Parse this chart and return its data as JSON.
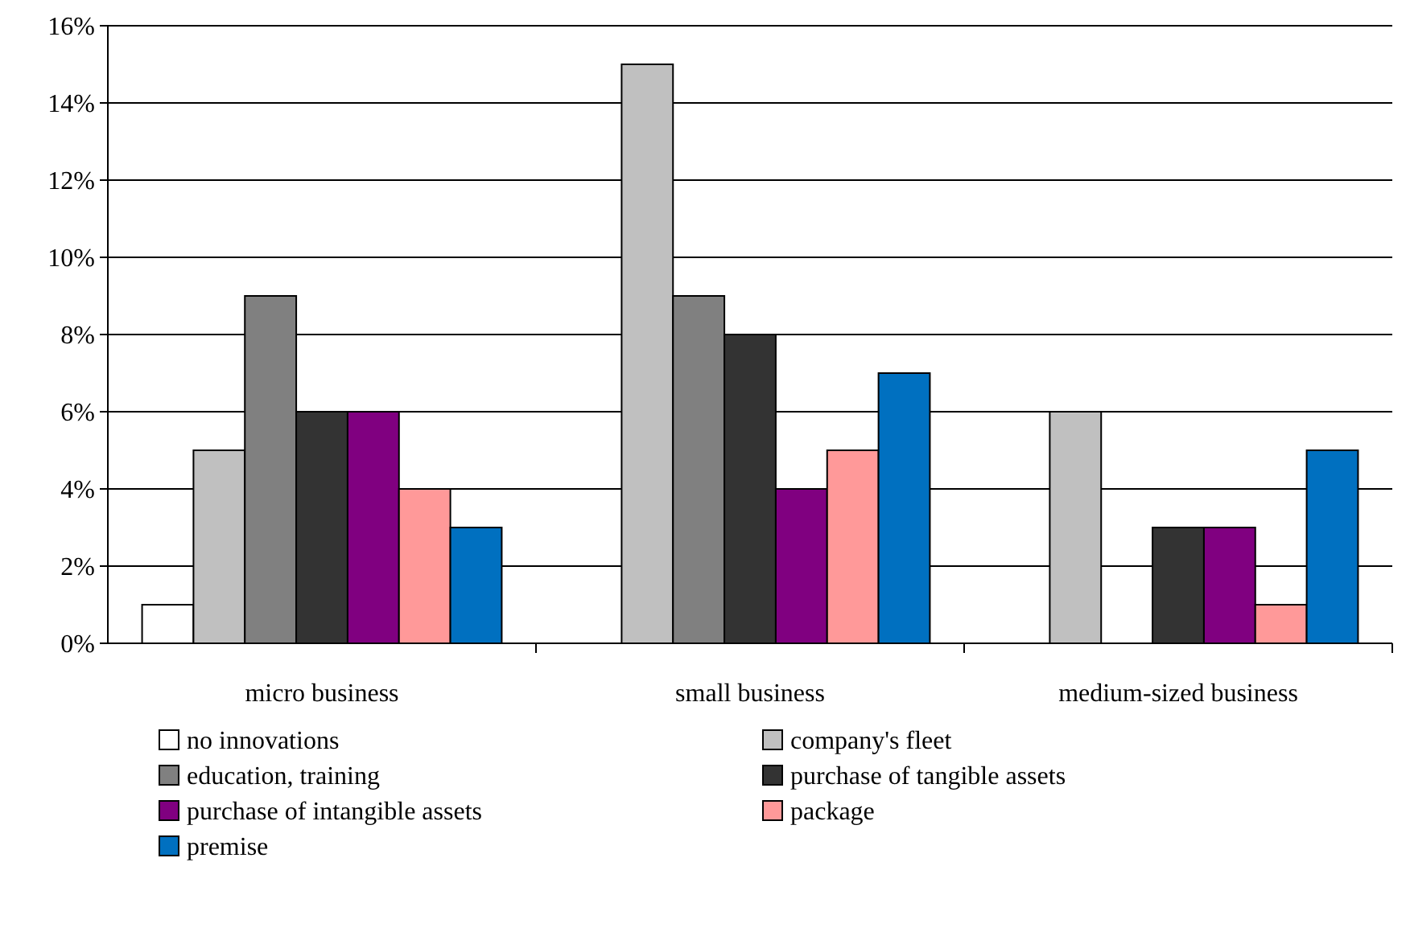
{
  "chart_data": {
    "type": "bar",
    "categories": [
      "micro business",
      "small business",
      "medium-sized business"
    ],
    "series": [
      {
        "name": "no innovations",
        "color": "#ffffff",
        "values": [
          1,
          0,
          0
        ]
      },
      {
        "name": "company's fleet",
        "color": "#c0c0c0",
        "values": [
          5,
          15,
          6
        ]
      },
      {
        "name": "education, training",
        "color": "#808080",
        "values": [
          9,
          9,
          0
        ]
      },
      {
        "name": "purchase of tangible assets",
        "color": "#333333",
        "values": [
          6,
          8,
          3
        ]
      },
      {
        "name": "purchase of intangible assets",
        "color": "#800080",
        "values": [
          6,
          4,
          3
        ]
      },
      {
        "name": "package",
        "color": "#ff9999",
        "values": [
          4,
          5,
          1
        ]
      },
      {
        "name": "premise",
        "color": "#0070c0",
        "values": [
          3,
          7,
          5
        ]
      }
    ],
    "ylim": [
      0,
      16
    ],
    "yticks": [
      {
        "value": 0,
        "label": "0%"
      },
      {
        "value": 2,
        "label": "2%"
      },
      {
        "value": 4,
        "label": "4%"
      },
      {
        "value": 6,
        "label": "6%"
      },
      {
        "value": 8,
        "label": "8%"
      },
      {
        "value": 10,
        "label": "10%"
      },
      {
        "value": 12,
        "label": "12%"
      },
      {
        "value": 14,
        "label": "14%"
      },
      {
        "value": 16,
        "label": "16%"
      }
    ],
    "grid": "y",
    "legend": "bottom"
  }
}
